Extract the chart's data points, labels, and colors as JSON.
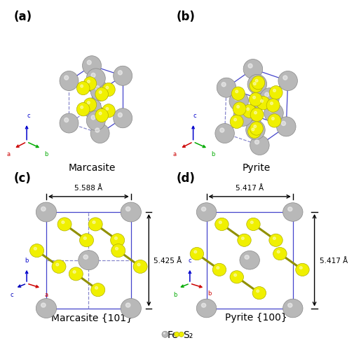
{
  "panel_labels": [
    "(a)",
    "(b)",
    "(c)",
    "(d)"
  ],
  "titles": [
    "Marcasite",
    "Pyrite",
    "Marcasite {101}",
    "Pyrite {100}"
  ],
  "dim_c_width": "5.588 Å",
  "dim_c_height": "5.425 Å",
  "dim_d_width": "5.417 Å",
  "dim_d_height": "5.417 Å",
  "fe_color": "#b8b8b8",
  "fe_edge": "#888888",
  "s_color": "#f0f000",
  "s_edge": "#b0b000",
  "bond_color": "#909000",
  "box_color": "#4444cc",
  "box_dash_color": "#8888cc",
  "background": "#ffffff",
  "title_fontsize": 10,
  "label_fontsize": 12,
  "axis_c_color": "#0000cc",
  "axis_a_color": "#cc0000",
  "axis_b_color": "#00aa00",
  "legend_fe_label": "Fe",
  "legend_s2_label": "S₂"
}
